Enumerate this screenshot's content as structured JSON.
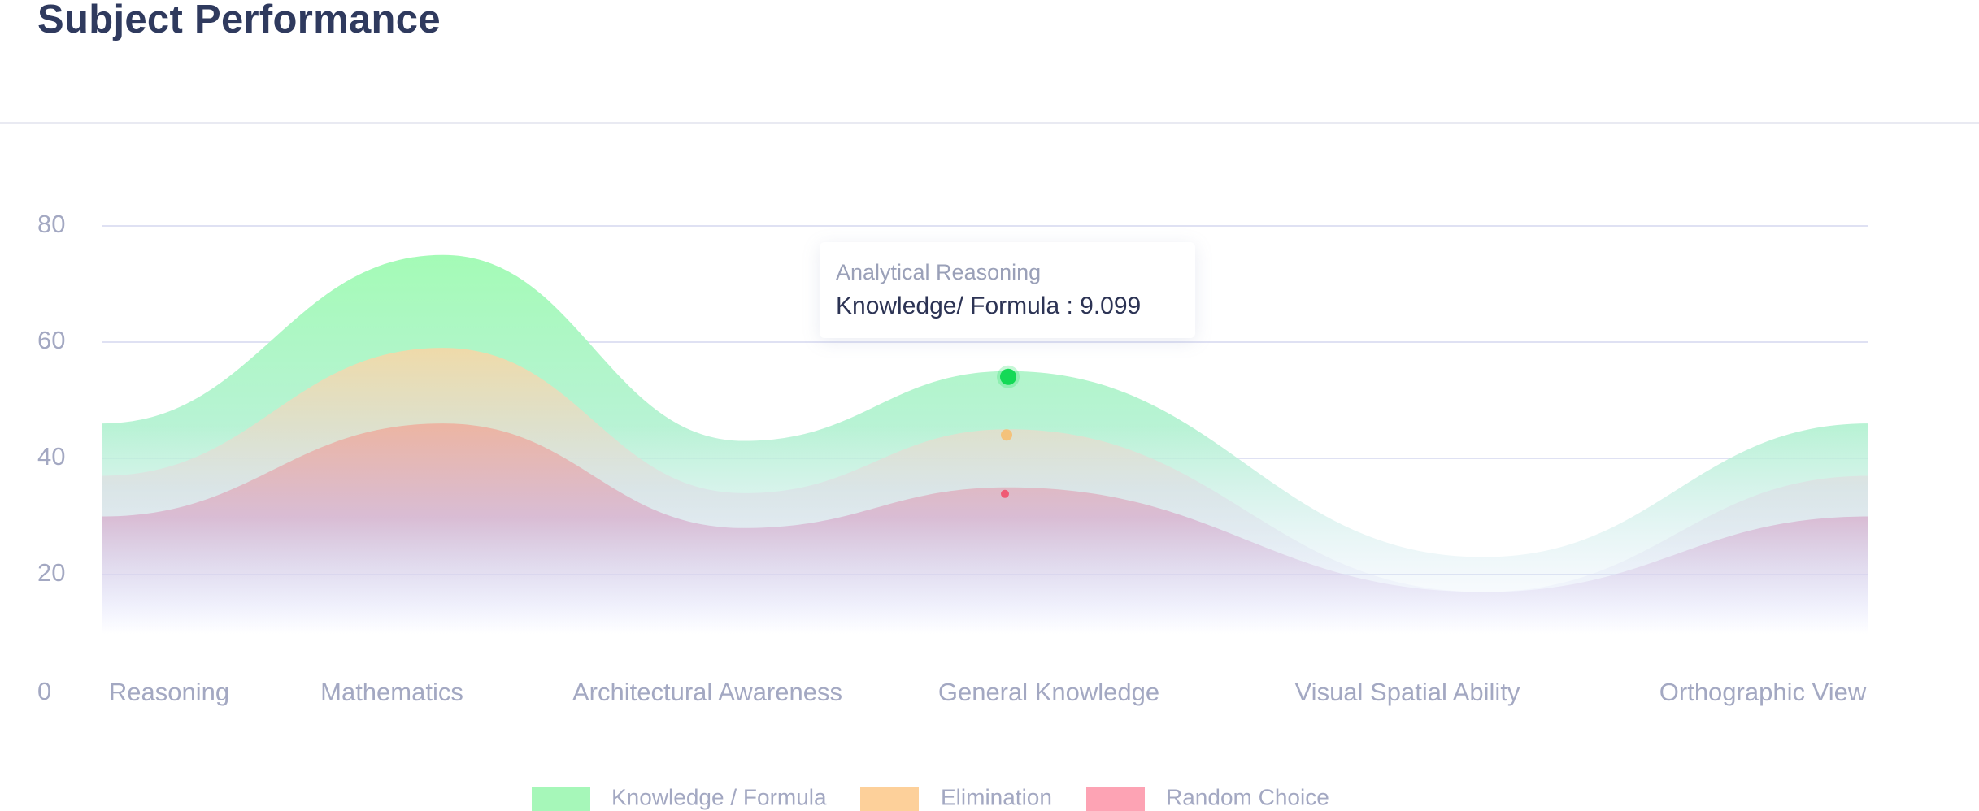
{
  "page": {
    "title": "Subject Performance"
  },
  "chart_data": {
    "type": "area",
    "categories": [
      "Reasoning",
      "Mathematics",
      "Architectural Awareness",
      "General Knowledge",
      "Visual Spatial Ability",
      "Orthographic View"
    ],
    "y_ticks": [
      0,
      20,
      40,
      60,
      80
    ],
    "ylim": [
      0,
      80
    ],
    "grid": true,
    "legend_position": "bottom",
    "series": [
      {
        "name": "Knowledge / Formula",
        "color": "#a6f7b9",
        "values": [
          46,
          75,
          43,
          55,
          23,
          46
        ]
      },
      {
        "name": "Elimination",
        "color": "#fdd09a",
        "values": [
          37,
          59,
          34,
          45,
          17,
          37
        ]
      },
      {
        "name": "Random Choice",
        "color": "#fda3b4",
        "values": [
          30,
          46,
          28,
          35,
          17,
          30
        ]
      }
    ],
    "tooltip": {
      "category": "Analytical Reasoning",
      "series": "Knowledge/ Formula",
      "value": "9.099",
      "text": "Knowledge/ Formula : 9.099"
    }
  }
}
